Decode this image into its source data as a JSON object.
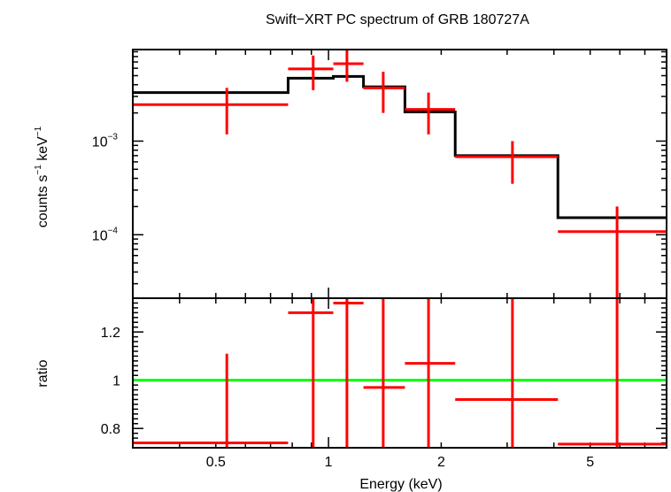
{
  "title": "Swift−XRT PC spectrum of GRB 180727A",
  "xlabel": "Energy (keV)",
  "colors": {
    "data": "#ff0000",
    "model": "#000000",
    "unity": "#00ff00",
    "axes": "#000000"
  },
  "chart_data": [
    {
      "type": "scatter",
      "panel": "spectrum",
      "ylabel_main": "counts s",
      "ylabel_sup1": "−1",
      "ylabel_mid": " keV",
      "ylabel_sup2": "−1",
      "xscale": "log",
      "yscale": "log",
      "xlim": [
        0.3,
        8.0
      ],
      "ylim": [
        2.1e-05,
        0.0095
      ],
      "ytick_labels": [
        {
          "value": 0.001,
          "base": "10",
          "exp": "−3"
        },
        {
          "value": 0.0001,
          "base": "10",
          "exp": "−4"
        }
      ],
      "series": [
        {
          "kind": "data",
          "points": [
            {
              "x": 0.535,
              "xlo": 0.3,
              "xhi": 0.78,
              "y": 0.00245,
              "ylo": 0.00118,
              "yhi": 0.0037
            },
            {
              "x": 0.91,
              "xlo": 0.78,
              "xhi": 1.03,
              "y": 0.0059,
              "ylo": 0.0035,
              "yhi": 0.0082
            },
            {
              "x": 1.12,
              "xlo": 1.03,
              "xhi": 1.24,
              "y": 0.0067,
              "ylo": 0.0043,
              "yhi": 0.0095
            },
            {
              "x": 1.4,
              "xlo": 1.24,
              "xhi": 1.6,
              "y": 0.0037,
              "ylo": 0.002,
              "yhi": 0.0055
            },
            {
              "x": 1.85,
              "xlo": 1.6,
              "xhi": 2.18,
              "y": 0.00218,
              "ylo": 0.00118,
              "yhi": 0.0033
            },
            {
              "x": 3.1,
              "xlo": 2.18,
              "xhi": 4.1,
              "y": 0.00068,
              "ylo": 0.00035,
              "yhi": 0.001
            },
            {
              "x": 5.9,
              "xlo": 4.1,
              "xhi": 8.0,
              "y": 0.000108,
              "ylo": 2.1e-05,
              "yhi": 0.0002
            }
          ]
        },
        {
          "kind": "model",
          "steps": [
            {
              "x0": 0.3,
              "x1": 0.78,
              "y": 0.0033
            },
            {
              "x0": 0.78,
              "x1": 1.03,
              "y": 0.0047
            },
            {
              "x0": 1.03,
              "x1": 1.24,
              "y": 0.0049
            },
            {
              "x0": 1.24,
              "x1": 1.6,
              "y": 0.0038
            },
            {
              "x0": 1.6,
              "x1": 2.18,
              "y": 0.00205
            },
            {
              "x0": 2.18,
              "x1": 4.1,
              "y": 0.0007
            },
            {
              "x0": 4.1,
              "x1": 8.0,
              "y": 0.000152
            }
          ]
        }
      ]
    },
    {
      "type": "scatter",
      "panel": "ratio",
      "ylabel": "ratio",
      "xscale": "log",
      "yscale": "linear",
      "xlim": [
        0.3,
        8.0
      ],
      "ylim": [
        0.72,
        1.34
      ],
      "x_tick_labels": [
        {
          "value": 0.5,
          "label": "0.5"
        },
        {
          "value": 1,
          "label": "1"
        },
        {
          "value": 2,
          "label": "2"
        },
        {
          "value": 5,
          "label": "5"
        }
      ],
      "y_tick_labels": [
        {
          "value": 0.8,
          "label": "0.8"
        },
        {
          "value": 1,
          "label": "1"
        },
        {
          "value": 1.2,
          "label": "1.2"
        }
      ],
      "reference_line": 1.0,
      "series": [
        {
          "kind": "data",
          "points": [
            {
              "x": 0.535,
              "xlo": 0.3,
              "xhi": 0.78,
              "y": 0.74,
              "ylo": 0.72,
              "yhi": 1.11
            },
            {
              "x": 0.91,
              "xlo": 0.78,
              "xhi": 1.03,
              "y": 1.28,
              "ylo": 0.72,
              "yhi": 1.34
            },
            {
              "x": 1.12,
              "xlo": 1.03,
              "xhi": 1.24,
              "y": 1.32,
              "ylo": 0.72,
              "yhi": 1.34
            },
            {
              "x": 1.4,
              "xlo": 1.24,
              "xhi": 1.6,
              "y": 0.97,
              "ylo": 0.72,
              "yhi": 1.34
            },
            {
              "x": 1.85,
              "xlo": 1.6,
              "xhi": 2.18,
              "y": 1.07,
              "ylo": 0.72,
              "yhi": 1.34
            },
            {
              "x": 3.1,
              "xlo": 2.18,
              "xhi": 4.1,
              "y": 0.92,
              "ylo": 0.72,
              "yhi": 1.34
            },
            {
              "x": 5.9,
              "xlo": 4.1,
              "xhi": 8.0,
              "y": 0.735,
              "ylo": 0.72,
              "yhi": 1.34
            }
          ]
        }
      ]
    }
  ]
}
